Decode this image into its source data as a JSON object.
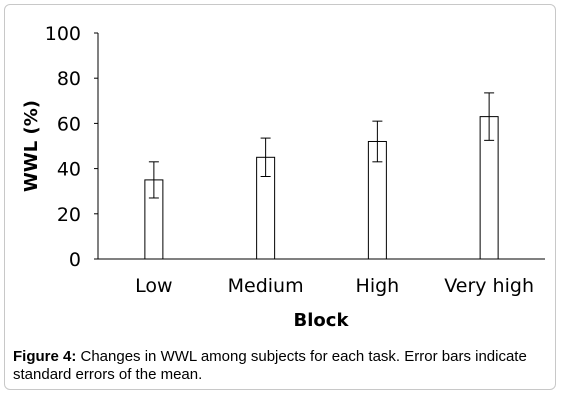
{
  "chart_data": {
    "type": "bar",
    "categories": [
      "Low",
      "Medium",
      "High",
      "Very high"
    ],
    "values": [
      35,
      45,
      52,
      63
    ],
    "errors": [
      8,
      8.5,
      9,
      10.5
    ],
    "xlabel": "Block",
    "ylabel": "WWL  (%)",
    "ylim": [
      0,
      100
    ],
    "yticks": [
      0,
      20,
      40,
      60,
      80,
      100
    ],
    "grid": false,
    "bar_fill": "#ffffff",
    "bar_stroke": "#000000"
  },
  "caption": {
    "label": "Figure 4:",
    "text": " Changes in WWL among subjects for each task. Error bars indicate standard errors of the mean."
  }
}
